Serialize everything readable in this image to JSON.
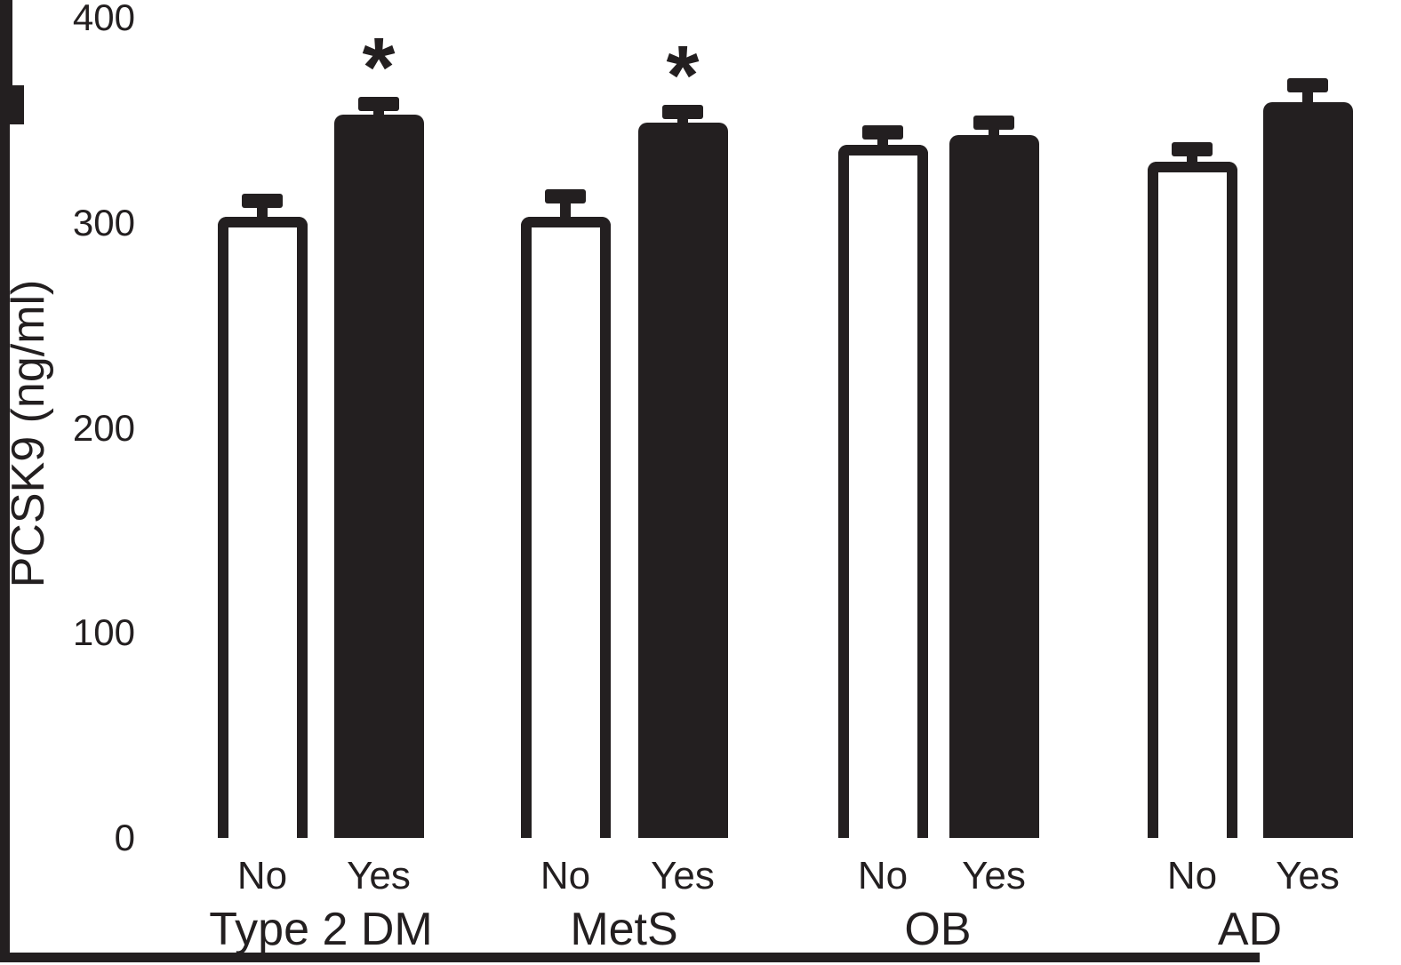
{
  "figure": {
    "background_color": "#ffffff",
    "ink_color": "#231f20"
  },
  "chart_data": {
    "type": "bar",
    "title": "",
    "xlabel": "",
    "ylabel": "PCSK9 (ng/ml)",
    "ylim": [
      0,
      400
    ],
    "yticks": [
      "0",
      "100",
      "200",
      "300",
      "400"
    ],
    "grid": false,
    "legend_position": "none",
    "error_bars": "upper SEM whiskers with caps",
    "significance_marker": "*",
    "bar_style_no": "white fill, black outline",
    "bar_style_yes": "solid black fill",
    "groups": [
      {
        "label": "Type 2 DM",
        "bars": [
          {
            "label": "No",
            "fill": "white",
            "value": 303,
            "error": 8,
            "sig": false
          },
          {
            "label": "Yes",
            "fill": "black",
            "value": 353,
            "error": 5,
            "sig": true
          }
        ]
      },
      {
        "label": "MetS",
        "bars": [
          {
            "label": "No",
            "fill": "white",
            "value": 303,
            "error": 10,
            "sig": false
          },
          {
            "label": "Yes",
            "fill": "black",
            "value": 349,
            "error": 5,
            "sig": true
          }
        ]
      },
      {
        "label": "OB",
        "bars": [
          {
            "label": "No",
            "fill": "white",
            "value": 338,
            "error": 6,
            "sig": false
          },
          {
            "label": "Yes",
            "fill": "black",
            "value": 343,
            "error": 6,
            "sig": false
          }
        ]
      },
      {
        "label": "AD",
        "bars": [
          {
            "label": "No",
            "fill": "white",
            "value": 330,
            "error": 6,
            "sig": false
          },
          {
            "label": "Yes",
            "fill": "black",
            "value": 359,
            "error": 8,
            "sig": false
          }
        ]
      }
    ]
  }
}
